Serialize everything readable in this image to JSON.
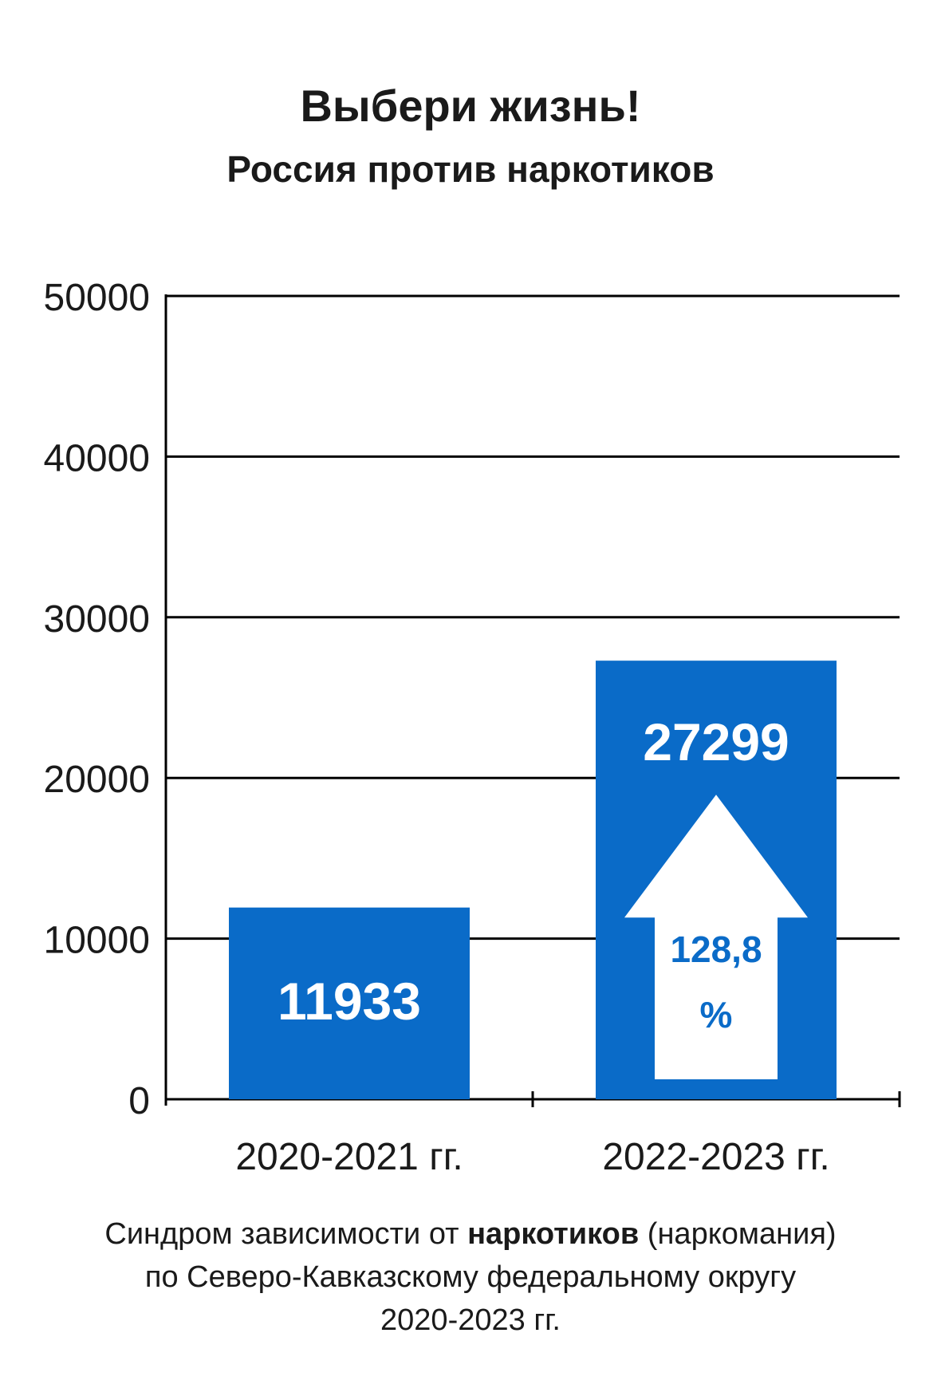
{
  "title": "Выбери жизнь!",
  "subtitle": "Россия против наркотиков",
  "chart_data": {
    "type": "bar",
    "categories": [
      "2020-2021 гг.",
      "2022-2023 гг."
    ],
    "values": [
      11933,
      27299
    ],
    "value_labels": [
      "11933",
      "27299"
    ],
    "ylim": [
      0,
      50000
    ],
    "yticks": [
      "0",
      "10000",
      "20000",
      "30000",
      "40000",
      "50000"
    ],
    "grid": true,
    "annotation": {
      "label": "128,8",
      "unit": "%"
    },
    "bar_color": "#0a6bc8"
  },
  "caption": {
    "line1_pre": "Синдром зависимости  от ",
    "line1_bold": "наркотиков",
    "line1_post": " (наркомания)",
    "line2": "по Северо-Кавказскому федеральному округу",
    "line3": "2020-2023 гг."
  }
}
